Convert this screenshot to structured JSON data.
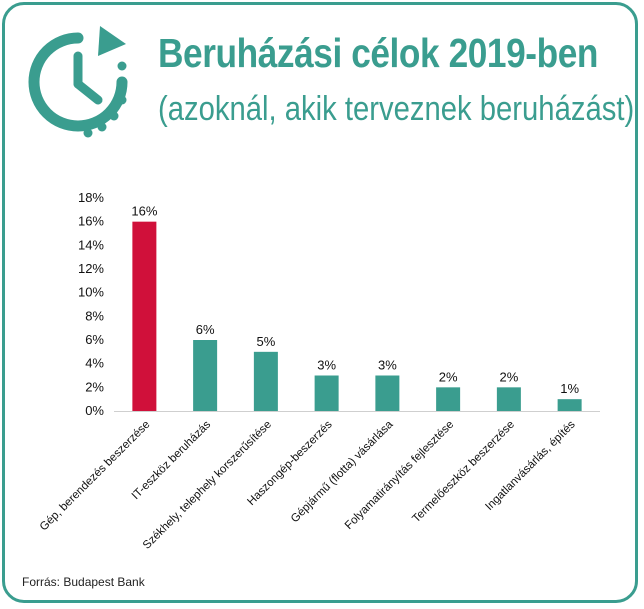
{
  "header": {
    "title": "Beruházási célok 2019-ben",
    "subtitle": "(azoknál, akik terveznek beruházást)"
  },
  "logo": {
    "icon": "clock-refresh-icon",
    "color": "#3a9d8f"
  },
  "colors": {
    "accent": "#3a9d8f",
    "highlight": "#d0103a",
    "bar": "#3a9d8f"
  },
  "chart_data": {
    "type": "bar",
    "title": "Beruházási célok 2019-ben",
    "subtitle": "(azoknál, akik terveznek beruházást)",
    "categories": [
      "Gép, berendezés beszerzése",
      "IT-eszköz beruházás",
      "Székhely, telephely korszerűsítése",
      "Haszongép-beszerzés",
      "Gépjármű (flotta) vásárlása",
      "Folyamatirányítás fejlesztése",
      "Termelőeszköz beszerzése",
      "Ingatlanvásárlás, építés"
    ],
    "values": [
      16,
      6,
      5,
      3,
      3,
      2,
      2,
      1
    ],
    "value_labels": [
      "16%",
      "6%",
      "5%",
      "3%",
      "3%",
      "2%",
      "2%",
      "1%"
    ],
    "highlight_index": 0,
    "ylim": [
      0,
      18
    ],
    "yticks": [
      "0%",
      "2%",
      "4%",
      "6%",
      "8%",
      "10%",
      "12%",
      "14%",
      "16%",
      "18%"
    ],
    "xlabel": "",
    "ylabel": "",
    "grid": false
  },
  "footer": {
    "source": "Forrás: Budapest Bank"
  }
}
